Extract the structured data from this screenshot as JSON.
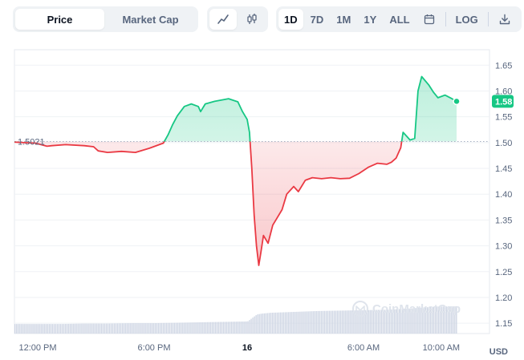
{
  "tabs": {
    "price_label": "Price",
    "market_cap_label": "Market Cap"
  },
  "chart_type_buttons": [
    "line-chart-icon",
    "candlestick-icon"
  ],
  "range": {
    "items": [
      "1D",
      "7D",
      "1M",
      "1Y",
      "ALL"
    ],
    "active": "1D",
    "log_label": "LOG"
  },
  "colors": {
    "up": "#16c784",
    "down": "#ea3943",
    "volume": "#cfd6e4"
  },
  "watermark": "CoinMarketCap",
  "currency_label": "USD",
  "chart_data": {
    "type": "line",
    "reference_value": 1.5021,
    "reference_label": "1.5021",
    "current_value": 1.58,
    "current_label": "1.58",
    "ylim": [
      1.13,
      1.68
    ],
    "y_ticks": [
      "1.65",
      "1.60",
      "1.55",
      "1.50",
      "1.45",
      "1.40",
      "1.35",
      "1.30",
      "1.25",
      "1.20",
      "1.15"
    ],
    "y_tick_values": [
      1.65,
      1.6,
      1.55,
      1.5,
      1.45,
      1.4,
      1.35,
      1.3,
      1.25,
      1.2,
      1.15
    ],
    "x_ticks": [
      {
        "label": "12:00 PM",
        "t": 0.05,
        "bold": false
      },
      {
        "label": "6:00 PM",
        "t": 0.3,
        "bold": false
      },
      {
        "label": "16",
        "t": 0.5,
        "bold": true
      },
      {
        "label": "6:00 AM",
        "t": 0.75,
        "bold": false
      },
      {
        "label": "10:00 AM",
        "t": 0.917,
        "bold": false
      }
    ],
    "price": [
      [
        0.0,
        1.501
      ],
      [
        0.02,
        1.5
      ],
      [
        0.045,
        1.499
      ],
      [
        0.07,
        1.493
      ],
      [
        0.08,
        1.494
      ],
      [
        0.11,
        1.496
      ],
      [
        0.15,
        1.494
      ],
      [
        0.17,
        1.492
      ],
      [
        0.18,
        1.484
      ],
      [
        0.2,
        1.481
      ],
      [
        0.23,
        1.483
      ],
      [
        0.26,
        1.481
      ],
      [
        0.29,
        1.489
      ],
      [
        0.32,
        1.499
      ],
      [
        0.33,
        1.515
      ],
      [
        0.34,
        1.535
      ],
      [
        0.35,
        1.552
      ],
      [
        0.365,
        1.57
      ],
      [
        0.38,
        1.575
      ],
      [
        0.395,
        1.57
      ],
      [
        0.4,
        1.56
      ],
      [
        0.41,
        1.575
      ],
      [
        0.43,
        1.58
      ],
      [
        0.46,
        1.585
      ],
      [
        0.48,
        1.579
      ],
      [
        0.49,
        1.56
      ],
      [
        0.5,
        1.545
      ],
      [
        0.505,
        1.52
      ],
      [
        0.51,
        1.45
      ],
      [
        0.515,
        1.36
      ],
      [
        0.52,
        1.3
      ],
      [
        0.525,
        1.262
      ],
      [
        0.53,
        1.29
      ],
      [
        0.535,
        1.32
      ],
      [
        0.545,
        1.305
      ],
      [
        0.555,
        1.34
      ],
      [
        0.565,
        1.355
      ],
      [
        0.575,
        1.37
      ],
      [
        0.585,
        1.4
      ],
      [
        0.6,
        1.415
      ],
      [
        0.61,
        1.405
      ],
      [
        0.625,
        1.427
      ],
      [
        0.64,
        1.432
      ],
      [
        0.66,
        1.43
      ],
      [
        0.68,
        1.432
      ],
      [
        0.7,
        1.43
      ],
      [
        0.72,
        1.431
      ],
      [
        0.74,
        1.44
      ],
      [
        0.76,
        1.452
      ],
      [
        0.78,
        1.46
      ],
      [
        0.8,
        1.458
      ],
      [
        0.81,
        1.462
      ],
      [
        0.82,
        1.47
      ],
      [
        0.83,
        1.49
      ],
      [
        0.835,
        1.52
      ],
      [
        0.845,
        1.51
      ],
      [
        0.85,
        1.505
      ],
      [
        0.86,
        1.508
      ],
      [
        0.867,
        1.6
      ],
      [
        0.875,
        1.628
      ],
      [
        0.89,
        1.612
      ],
      [
        0.9,
        1.598
      ],
      [
        0.91,
        1.587
      ],
      [
        0.925,
        1.592
      ],
      [
        0.94,
        1.585
      ],
      [
        0.95,
        1.58
      ]
    ],
    "volume": [
      [
        0.0,
        0.22
      ],
      [
        0.05,
        0.22
      ],
      [
        0.1,
        0.22
      ],
      [
        0.15,
        0.23
      ],
      [
        0.2,
        0.23
      ],
      [
        0.25,
        0.24
      ],
      [
        0.3,
        0.24
      ],
      [
        0.35,
        0.25
      ],
      [
        0.4,
        0.26
      ],
      [
        0.45,
        0.27
      ],
      [
        0.5,
        0.28
      ],
      [
        0.52,
        0.44
      ],
      [
        0.53,
        0.46
      ],
      [
        0.55,
        0.48
      ],
      [
        0.6,
        0.5
      ],
      [
        0.65,
        0.52
      ],
      [
        0.7,
        0.53
      ],
      [
        0.75,
        0.54
      ],
      [
        0.8,
        0.55
      ],
      [
        0.85,
        0.58
      ],
      [
        0.9,
        0.62
      ],
      [
        0.95,
        0.63
      ]
    ]
  }
}
